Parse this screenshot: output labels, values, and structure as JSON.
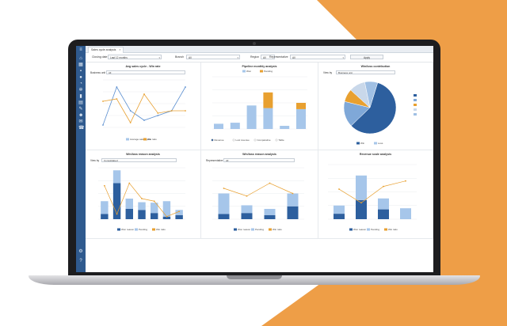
{
  "app": {
    "tab_label": "Sales cycle analysis",
    "tab_close": "×"
  },
  "filters": {
    "closing_date": {
      "label": "Closing date",
      "value": "Last 12 months"
    },
    "branch": {
      "label": "Branch",
      "value": "All"
    },
    "region": {
      "label": "Region",
      "value": "All"
    },
    "representative": {
      "label": "Representative",
      "value": "All"
    },
    "apply_label": "Apply"
  },
  "panels": {
    "avg_sales": {
      "title": "Avg sales cycle - Win rate",
      "filter_label": "Business unit",
      "filter_value": "All"
    },
    "pipeline": {
      "title": "Pipeline monthly analysis",
      "legend": [
        "Won",
        "Pending"
      ],
      "radios": [
        "Revenue",
        "Lost revenue",
        "Comparative",
        "Table"
      ]
    },
    "win_contrib": {
      "title": "Win/loss contribution",
      "filter_label": "View by",
      "filter_value": "Business unit",
      "legend": [
        "Win",
        "Loss"
      ]
    },
    "win_reason": {
      "title": "Win/loss reason analysis",
      "filter_label": "View by",
      "filter_value": "Consolidated",
      "legend": [
        "Won reason",
        "Pending",
        "Win ratio"
      ]
    },
    "win_rep": {
      "title": "Win/loss reason analysis",
      "filter_label": "Representative",
      "filter_value": "All",
      "legend": [
        "Won reason",
        "Pending",
        "Win ratio"
      ]
    },
    "revenue": {
      "title": "Revenue scale analysis",
      "legend": [
        "Won reason",
        "Pending",
        "Win ratio"
      ]
    }
  },
  "chart_data": [
    {
      "type": "line",
      "title": "Avg sales cycle - Win rate",
      "series": [
        {
          "name": "Average sales cycle",
          "values": [
            5,
            85,
            35,
            15,
            25,
            35,
            85
          ]
        },
        {
          "name": "Win ratio",
          "values": [
            55,
            60,
            10,
            70,
            30,
            35,
            35
          ]
        }
      ],
      "ylim": [
        0,
        100
      ]
    },
    {
      "type": "bar",
      "title": "Pipeline monthly analysis",
      "series": [
        {
          "name": "Won",
          "values": [
            10,
            12,
            45,
            40,
            6,
            38
          ]
        },
        {
          "name": "Pending",
          "values": [
            0,
            0,
            0,
            30,
            0,
            12
          ]
        }
      ],
      "ylim": [
        0,
        100
      ]
    },
    {
      "type": "pie",
      "title": "Win/loss contribution",
      "values": [
        58,
        16,
        8,
        10,
        8
      ],
      "colors": [
        "#2d5f9e",
        "#7fa8d8",
        "#e8a030",
        "#c9d8ea",
        "#a0c0e4"
      ]
    },
    {
      "type": "bar",
      "title": "Win/loss reason analysis",
      "series": [
        {
          "name": "Won reason",
          "values": [
            10,
            70,
            20,
            18,
            12,
            5,
            8
          ]
        },
        {
          "name": "Pending",
          "values": [
            25,
            25,
            20,
            15,
            20,
            30,
            10
          ]
        },
        {
          "name": "Win ratio",
          "values": [
            65,
            10,
            70,
            40,
            35,
            5,
            15
          ]
        }
      ],
      "ylim": [
        0,
        100
      ]
    },
    {
      "type": "bar",
      "title": "Win/loss reason analysis",
      "series": [
        {
          "name": "Won reason",
          "values": [
            10,
            12,
            8,
            25
          ]
        },
        {
          "name": "Pending",
          "values": [
            40,
            15,
            12,
            25
          ]
        },
        {
          "name": "Win ratio",
          "values": [
            60,
            45,
            70,
            50
          ]
        }
      ],
      "ylim": [
        0,
        100
      ]
    },
    {
      "type": "bar",
      "title": "Revenue scale analysis",
      "series": [
        {
          "name": "Won reason",
          "values": [
            10,
            35,
            18,
            0
          ]
        },
        {
          "name": "Pending",
          "values": [
            15,
            45,
            20,
            20
          ]
        },
        {
          "name": "Win ratio",
          "values": [
            55,
            30,
            60,
            70
          ]
        }
      ],
      "ylim": [
        0,
        100
      ]
    }
  ],
  "colors": {
    "won": "#2d5f9e",
    "pending": "#a6c6ea",
    "ratio": "#e8a030",
    "grid": "#e9ecef"
  }
}
